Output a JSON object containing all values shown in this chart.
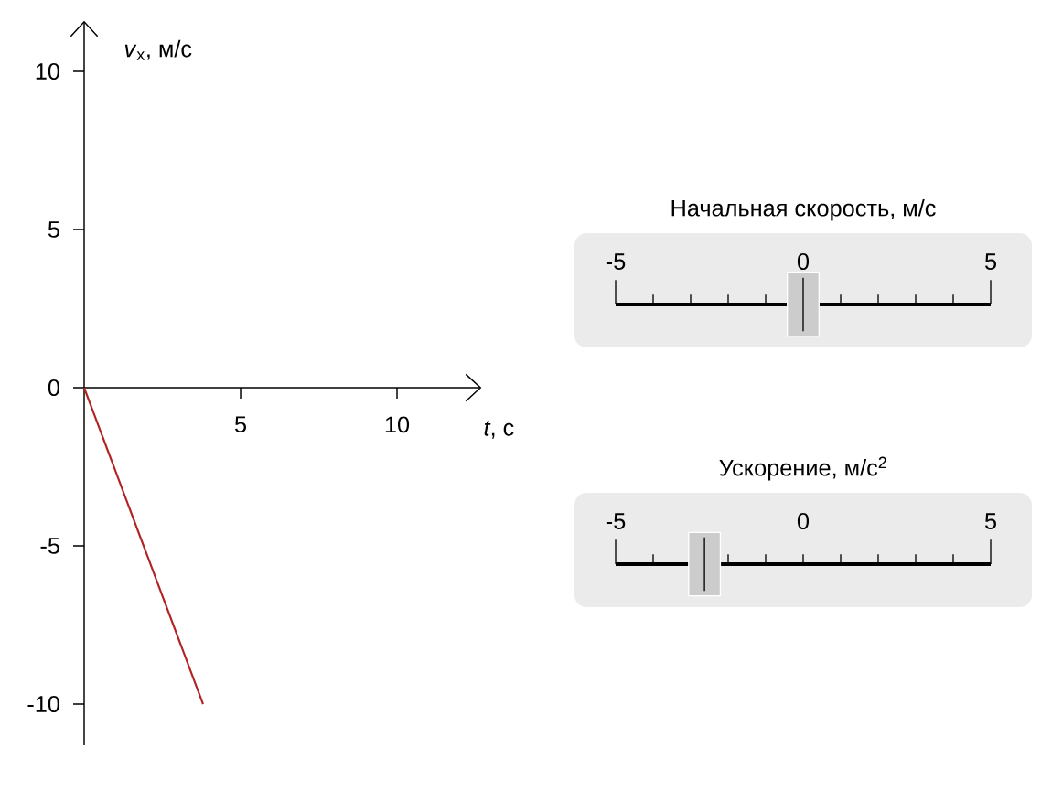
{
  "chart_data": [
    {
      "type": "line",
      "xlabel": "*t*, с",
      "ylabel": "*v*$_{x}$, м/с",
      "x": [
        0,
        3.8
      ],
      "xlim": [
        0,
        12.7
      ],
      "ylim": [
        -11.3,
        11.6
      ],
      "xticks": [
        5,
        10
      ],
      "yticks": [
        -10,
        -5,
        0,
        5,
        10
      ],
      "series": [
        {
          "color": "#b22222",
          "values": [
            0,
            -10
          ]
        }
      ]
    },
    {
      "type": "other",
      "title": "Начальная скорость, м/с",
      "annotations": [
        "-5",
        "0",
        "5"
      ]
    },
    {
      "type": "other",
      "title": "Ускорение, м/с$^{2}$",
      "annotations": [
        "-5",
        "0",
        "5"
      ]
    }
  ]
}
